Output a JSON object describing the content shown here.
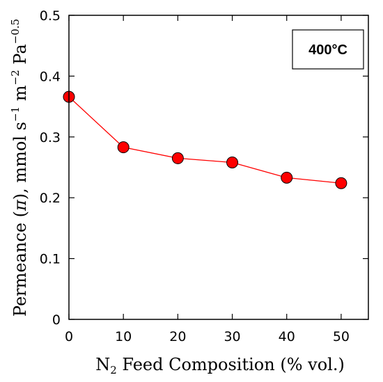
{
  "chart_data": {
    "type": "line",
    "x": [
      0,
      10,
      20,
      30,
      40,
      50
    ],
    "series": [
      {
        "values": [
          0.366,
          0.283,
          0.265,
          0.258,
          0.233,
          0.224
        ],
        "color": "#ff0000"
      }
    ],
    "xlim": [
      0,
      55
    ],
    "ylim": [
      0,
      0.5
    ],
    "xticks": [
      0,
      10,
      20,
      30,
      40,
      50
    ],
    "yticks": [
      0,
      0.1,
      0.2,
      0.3,
      0.4,
      0.5
    ],
    "xtick_labels": [
      "0",
      "10",
      "20",
      "30",
      "40",
      "50"
    ],
    "ytick_labels": [
      "0",
      "0.1",
      "0.2",
      "0.3",
      "0.4",
      "0.5"
    ],
    "xlabel": {
      "main": "N",
      "sub": "2",
      "rest": " Feed Composition (% vol.)"
    },
    "ylabel": {
      "prefix": "Permeance (",
      "symbol": "π",
      "middle": "), mmol s",
      "sup1": "−1",
      "middle2": " m",
      "sup2": "−2",
      "middle3": " Pa",
      "sup3": "−0.5"
    },
    "annotation": "400°C",
    "grid": false,
    "marker_color": "#ff0000"
  }
}
